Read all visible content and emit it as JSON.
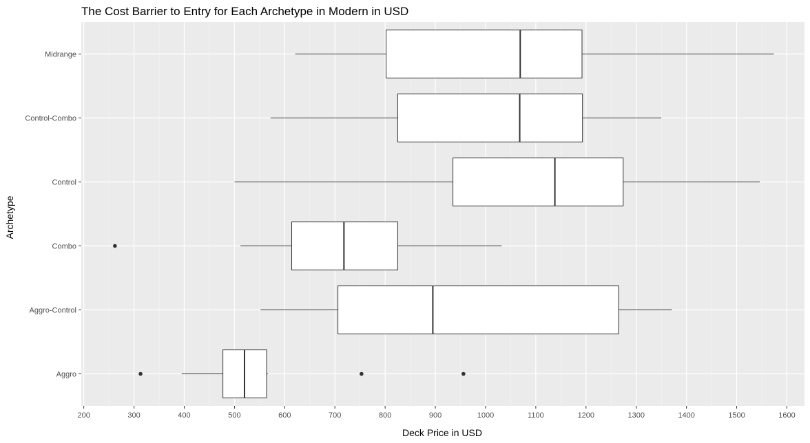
{
  "chart_data": {
    "type": "boxplot",
    "orientation": "horizontal",
    "title": "The Cost Barrier to Entry for Each Archetype in Modern in USD",
    "xlabel": "Deck Price in USD",
    "ylabel": "Archetype",
    "xlim": [
      195,
      1635
    ],
    "xticks": [
      200,
      300,
      400,
      500,
      600,
      700,
      800,
      900,
      1000,
      1100,
      1200,
      1300,
      1400,
      1500,
      1600
    ],
    "categories": [
      "Aggro",
      "Aggro-Control",
      "Combo",
      "Control",
      "Control-Combo",
      "Midrange"
    ],
    "boxes": [
      {
        "category": "Aggro",
        "whisker_low": 395,
        "q1": 477,
        "median": 520,
        "q3": 564,
        "whisker_high": 567,
        "outliers": [
          313,
          753,
          956
        ]
      },
      {
        "category": "Aggro-Control",
        "whisker_low": 552,
        "q1": 706,
        "median": 895,
        "q3": 1265,
        "whisker_high": 1371,
        "outliers": []
      },
      {
        "category": "Combo",
        "whisker_low": 512,
        "q1": 614,
        "median": 718,
        "q3": 825,
        "whisker_high": 1032,
        "outliers": [
          262
        ]
      },
      {
        "category": "Control",
        "whisker_low": 500,
        "q1": 935,
        "median": 1138,
        "q3": 1274,
        "whisker_high": 1546,
        "outliers": []
      },
      {
        "category": "Control-Combo",
        "whisker_low": 572,
        "q1": 825,
        "median": 1068,
        "q3": 1193,
        "whisker_high": 1350,
        "outliers": []
      },
      {
        "category": "Midrange",
        "whisker_low": 621,
        "q1": 802,
        "median": 1069,
        "q3": 1192,
        "whisker_high": 1574,
        "outliers": []
      }
    ],
    "grid": true,
    "legend": "none",
    "colors": {
      "panel_background": "#ebebeb",
      "grid_major": "#ffffff",
      "grid_minor": "#f5f5f5",
      "box_fill": "#ffffff",
      "box_stroke": "#333333",
      "outlier": "#333333",
      "tick": "#333333"
    }
  }
}
